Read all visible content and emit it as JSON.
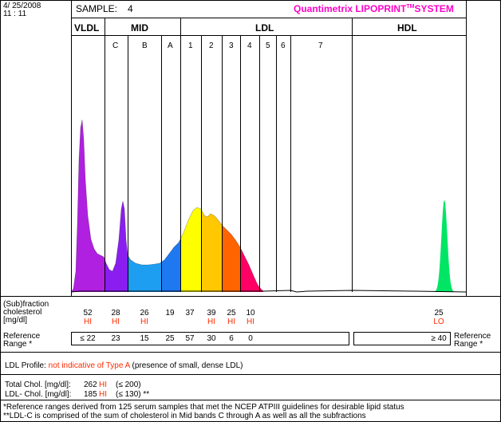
{
  "header": {
    "date": "4/ 25/2008",
    "time": "11 : 11",
    "sample_label": "SAMPLE:",
    "sample_value": "4",
    "brand": "Quantimetrix LIPOPRINT",
    "brand_tm": "TM",
    "brand_suffix": "SYSTEM"
  },
  "colors": {
    "vldl": "#b020e0",
    "midC": "#8a1ef0",
    "midB": "#1e9ef0",
    "midA": "#1e78f0",
    "ldl1": "#ffff00",
    "ldl2": "#ffc800",
    "ldl3": "#ff6400",
    "ldl4": "#ff0064",
    "hdl": "#00e664",
    "red": "#ff2a00",
    "brand": "#ff00c8"
  },
  "chart_data": {
    "type": "area",
    "title": "",
    "xlabel": "",
    "ylabel": "",
    "groups": [
      {
        "name": "VLDL",
        "bands": [
          {
            "name": "",
            "value": 52,
            "flag": "HI",
            "ref": "≤ 22"
          }
        ]
      },
      {
        "name": "MID",
        "bands": [
          {
            "name": "C",
            "value": 28,
            "flag": "HI",
            "ref": "23"
          },
          {
            "name": "B",
            "value": 26,
            "flag": "HI",
            "ref": "15"
          },
          {
            "name": "A",
            "value": 19,
            "flag": "",
            "ref": "25"
          }
        ]
      },
      {
        "name": "LDL",
        "bands": [
          {
            "name": "1",
            "value": 37,
            "flag": "",
            "ref": "57"
          },
          {
            "name": "2",
            "value": 39,
            "flag": "HI",
            "ref": "30"
          },
          {
            "name": "3",
            "value": 25,
            "flag": "HI",
            "ref": "6"
          },
          {
            "name": "4",
            "value": 10,
            "flag": "HI",
            "ref": "0"
          },
          {
            "name": "5",
            "value": null,
            "flag": "",
            "ref": ""
          },
          {
            "name": "6",
            "value": null,
            "flag": "",
            "ref": ""
          },
          {
            "name": "7",
            "value": null,
            "flag": "",
            "ref": ""
          }
        ]
      },
      {
        "name": "HDL",
        "bands": [
          {
            "name": "",
            "value": 25,
            "flag": "LO",
            "ref": "≥ 40"
          }
        ]
      }
    ]
  },
  "table": {
    "row_label": [
      "(Sub)fraction",
      "cholesterol",
      "[mg/dl]"
    ],
    "ref_label_left": [
      "Reference",
      "Range *"
    ],
    "ref_label_right": [
      "Reference",
      "Range *"
    ]
  },
  "profile": {
    "label": "LDL Profile:",
    "result": "not indicative of Type A",
    "note": "(presence of small, dense LDL)"
  },
  "totals": {
    "total_label": "Total Chol. [mg/dl]:",
    "total_value": "262",
    "total_flag": "HI",
    "total_ref": "(≤ 200)",
    "ldl_label": "LDL- Chol. [mg/dl]:",
    "ldl_value": "185",
    "ldl_flag": "HI",
    "ldl_ref": "(≤ 130) **"
  },
  "footnotes": [
    "*Reference ranges derived from 125 serum samples that met the NCEP ATPIII guidelines for desirable lipid status",
    "**LDL-C is comprised of the sum of cholesterol in Mid bands C through A as well as all the subfractions"
  ]
}
